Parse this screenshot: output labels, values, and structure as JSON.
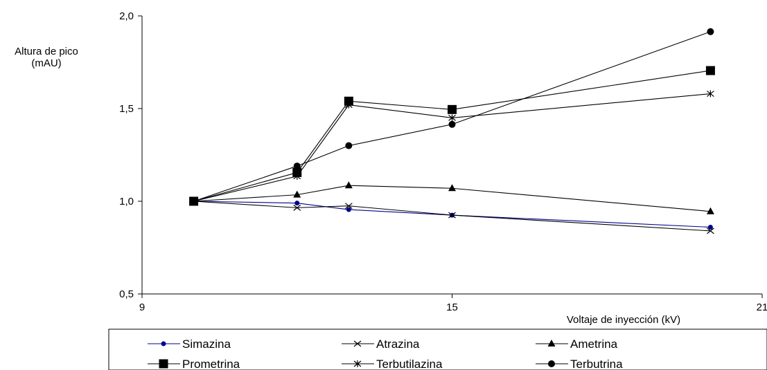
{
  "chart_data": {
    "type": "line",
    "title": "",
    "ylabel": [
      "Altura de pico",
      "(mAU)"
    ],
    "xlabel": "Voltaje de inyección (kV)",
    "xlim": [
      9,
      21
    ],
    "ylim": [
      0.5,
      2.0
    ],
    "xticks": [
      {
        "value": 9,
        "label": "9"
      },
      {
        "value": 15,
        "label": "15"
      },
      {
        "value": 21,
        "label": "21"
      }
    ],
    "yticks": [
      {
        "value": 0.5,
        "label": "0,5"
      },
      {
        "value": 1.0,
        "label": "1,0"
      },
      {
        "value": 1.5,
        "label": "1,5"
      },
      {
        "value": 2.0,
        "label": "2,0"
      }
    ],
    "grid": false,
    "legend_position": "bottom",
    "x": [
      10,
      12,
      13,
      15,
      20
    ],
    "series": [
      {
        "name": "Simazina",
        "marker": "dot",
        "color": "#00008B",
        "values": [
          1.0,
          0.99,
          0.955,
          0.925,
          0.86
        ]
      },
      {
        "name": "Atrazina",
        "marker": "x",
        "color": "#000000",
        "values": [
          1.0,
          0.965,
          0.975,
          0.925,
          0.84
        ]
      },
      {
        "name": "Ametrina",
        "marker": "triangle",
        "color": "#000000",
        "values": [
          1.0,
          1.035,
          1.085,
          1.07,
          0.945
        ]
      },
      {
        "name": "Prometrina",
        "marker": "square",
        "color": "#000000",
        "values": [
          1.0,
          1.155,
          1.54,
          1.495,
          1.705
        ]
      },
      {
        "name": "Terbutilazina",
        "marker": "star",
        "color": "#000000",
        "values": [
          1.0,
          1.135,
          1.52,
          1.45,
          1.58
        ]
      },
      {
        "name": "Terbutrina",
        "marker": "circle",
        "color": "#000000",
        "values": [
          1.0,
          1.19,
          1.3,
          1.415,
          1.915
        ]
      }
    ]
  }
}
